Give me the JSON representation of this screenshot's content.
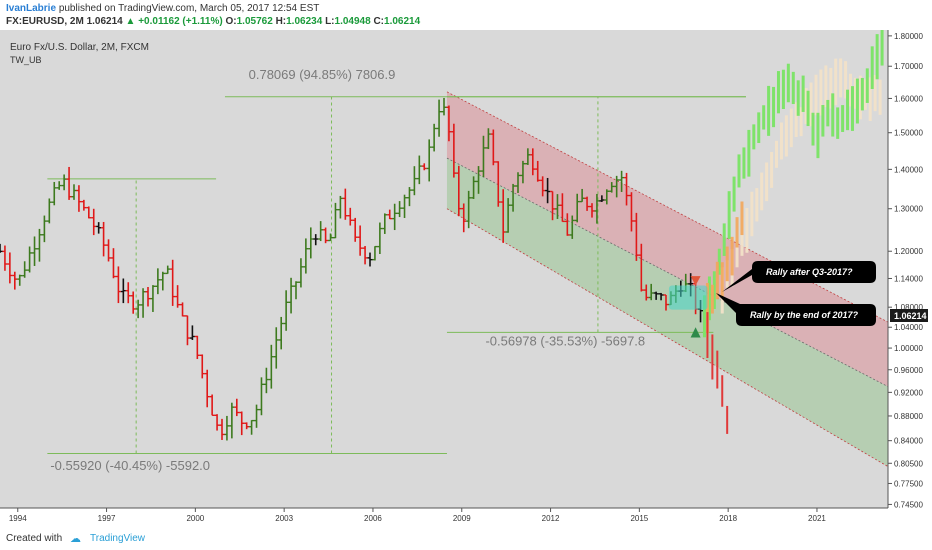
{
  "header": {
    "author": "IvanLabrie",
    "published_text": "published on TradingView.com, March 05, 2017 12:54 EST",
    "symbol_line": {
      "symbol": "FX:EURUSD, 2M",
      "last": "1.06214",
      "change": "+0.01162 (+1.11%)",
      "o_label": "O:",
      "o": "1.05762",
      "h_label": "H:",
      "h": "1.06234",
      "l_label": "L:",
      "l": "1.04948",
      "c_label": "C:",
      "c": "1.06214"
    }
  },
  "chart_title": "Euro Fx/U.S. Dollar, 2M, FXCM",
  "indicator_label": "TW_UB",
  "measurements": [
    {
      "text": "0.78069 (94.85%) 7806.9"
    },
    {
      "text": "-0.55920 (-40.45%) -5592.0"
    },
    {
      "text": "-0.56978 (-35.53%) -5697.8"
    }
  ],
  "callouts": [
    {
      "text": "Rally after Q3-2017?"
    },
    {
      "text": "Rally by the end of 2017?"
    }
  ],
  "last_price_tag": "1.06214",
  "footer": {
    "created_text": "Created with",
    "brand": "TradingView"
  },
  "colors": {
    "up_bar": "#3d7a1e",
    "down_bar": "#e01818",
    "neutral_bar": "#111111",
    "forecast_green": "#7ee36a",
    "forecast_pale": "#f2e2c8",
    "forecast_orange": "#f2a65a",
    "channel_upper": "#d9a3a8",
    "channel_lower": "#a9c9a4",
    "measure_line": "#7dbb5a"
  },
  "chart_data": {
    "type": "candlestick-ohlc",
    "y_axis": {
      "scale": "log",
      "ylim": [
        0.74,
        1.82
      ],
      "ticks": [
        "1.80000",
        "1.70000",
        "1.60000",
        "1.50000",
        "1.40000",
        "1.30000",
        "1.20000",
        "1.14000",
        "1.08000",
        "1.04000",
        "1.00000",
        "0.96000",
        "0.92000",
        "0.88000",
        "0.84000",
        "0.80500",
        "0.77500",
        "0.74500"
      ],
      "tick_values": [
        1.8,
        1.7,
        1.6,
        1.5,
        1.4,
        1.3,
        1.2,
        1.14,
        1.08,
        1.04,
        1.0,
        0.96,
        0.92,
        0.88,
        0.84,
        0.805,
        0.775,
        0.745
      ]
    },
    "x_axis": {
      "xlim": [
        1993.4,
        2023.4
      ],
      "ticks": [
        "1994",
        "1997",
        "2000",
        "2003",
        "2006",
        "2009",
        "2012",
        "2015",
        "2018",
        "2021"
      ],
      "tick_values": [
        1994,
        1997,
        2000,
        2003,
        2006,
        2009,
        2012,
        2015,
        2018,
        2021
      ]
    },
    "historical_path": [
      [
        1993.4,
        1.2
      ],
      [
        1994.0,
        1.13
      ],
      [
        1994.5,
        1.21
      ],
      [
        1995.0,
        1.3
      ],
      [
        1995.5,
        1.37
      ],
      [
        1995.9,
        1.33
      ],
      [
        1996.5,
        1.27
      ],
      [
        1997.0,
        1.2
      ],
      [
        1997.5,
        1.1
      ],
      [
        1998.0,
        1.09
      ],
      [
        1998.5,
        1.12
      ],
      [
        1999.0,
        1.16
      ],
      [
        1999.5,
        1.06
      ],
      [
        2000.0,
        1.0
      ],
      [
        2000.4,
        0.92
      ],
      [
        2000.8,
        0.85
      ],
      [
        2001.2,
        0.89
      ],
      [
        2001.6,
        0.87
      ],
      [
        2002.0,
        0.88
      ],
      [
        2002.6,
        0.99
      ],
      [
        2003.0,
        1.07
      ],
      [
        2003.5,
        1.15
      ],
      [
        2004.0,
        1.25
      ],
      [
        2004.5,
        1.21
      ],
      [
        2004.9,
        1.33
      ],
      [
        2005.4,
        1.22
      ],
      [
        2005.9,
        1.19
      ],
      [
        2006.4,
        1.27
      ],
      [
        2006.9,
        1.32
      ],
      [
        2007.4,
        1.36
      ],
      [
        2007.9,
        1.45
      ],
      [
        2008.2,
        1.58
      ],
      [
        2008.5,
        1.55
      ],
      [
        2008.8,
        1.32
      ],
      [
        2009.1,
        1.28
      ],
      [
        2009.6,
        1.42
      ],
      [
        2009.9,
        1.48
      ],
      [
        2010.4,
        1.25
      ],
      [
        2010.8,
        1.38
      ],
      [
        2011.3,
        1.44
      ],
      [
        2011.8,
        1.35
      ],
      [
        2012.3,
        1.28
      ],
      [
        2012.6,
        1.24
      ],
      [
        2013.0,
        1.32
      ],
      [
        2013.5,
        1.31
      ],
      [
        2014.0,
        1.37
      ],
      [
        2014.4,
        1.38
      ],
      [
        2014.8,
        1.25
      ],
      [
        2015.1,
        1.1
      ],
      [
        2015.6,
        1.1
      ],
      [
        2016.0,
        1.09
      ],
      [
        2016.4,
        1.13
      ],
      [
        2016.8,
        1.11
      ],
      [
        2017.0,
        1.06
      ],
      [
        2017.15,
        1.06
      ]
    ],
    "forecast_green_path": [
      [
        2017.2,
        1.06
      ],
      [
        2017.5,
        1.12
      ],
      [
        2017.8,
        1.2
      ],
      [
        2018.2,
        1.35
      ],
      [
        2018.6,
        1.43
      ],
      [
        2019.0,
        1.52
      ],
      [
        2019.5,
        1.58
      ],
      [
        2020.0,
        1.65
      ],
      [
        2020.5,
        1.6
      ],
      [
        2021.0,
        1.48
      ],
      [
        2021.4,
        1.56
      ],
      [
        2021.8,
        1.53
      ],
      [
        2022.2,
        1.58
      ],
      [
        2022.6,
        1.62
      ],
      [
        2023.0,
        1.72
      ],
      [
        2023.3,
        1.8
      ]
    ],
    "forecast_pale_path": [
      [
        2017.8,
        1.12
      ],
      [
        2018.3,
        1.2
      ],
      [
        2018.8,
        1.28
      ],
      [
        2019.3,
        1.38
      ],
      [
        2019.8,
        1.48
      ],
      [
        2020.3,
        1.52
      ],
      [
        2020.8,
        1.58
      ],
      [
        2021.3,
        1.64
      ],
      [
        2021.8,
        1.66
      ],
      [
        2022.3,
        1.62
      ],
      [
        2022.8,
        1.6
      ],
      [
        2023.2,
        1.59
      ]
    ],
    "forecast_orange_path": [
      [
        2017.3,
        1.08
      ],
      [
        2017.6,
        1.12
      ],
      [
        2017.9,
        1.15
      ],
      [
        2018.2,
        1.22
      ],
      [
        2018.5,
        1.28
      ]
    ],
    "forecast_down_path": [
      [
        2017.3,
        1.02
      ],
      [
        2017.6,
        0.96
      ],
      [
        2017.9,
        0.9
      ],
      [
        2018.1,
        0.82
      ]
    ],
    "channel": {
      "upper_line": [
        [
          2008.5,
          1.62
        ],
        [
          2023.4,
          1.05
        ]
      ],
      "middle_line": [
        [
          2008.5,
          1.43
        ],
        [
          2023.4,
          0.93
        ]
      ],
      "lower_line": [
        [
          2008.5,
          1.3
        ],
        [
          2023.4,
          0.8
        ]
      ]
    },
    "measures": [
      {
        "x": 2004.6,
        "y_from": 0.82,
        "y_to": 1.605,
        "h_from": [
          2001.0,
          2008.5
        ],
        "h_to": [
          2001.0,
          2018.6
        ]
      },
      {
        "x": 1998.0,
        "y_from": 0.82,
        "y_to": 1.375,
        "h_from": [
          1995.0,
          2001.0
        ],
        "h_to": [
          1995.0,
          2000.7
        ]
      },
      {
        "x": 2013.6,
        "y_from": 1.03,
        "y_to": 1.605,
        "h_from": [
          2008.5,
          2017.5
        ],
        "h_to": [
          2008.5,
          2018.6
        ]
      }
    ]
  }
}
